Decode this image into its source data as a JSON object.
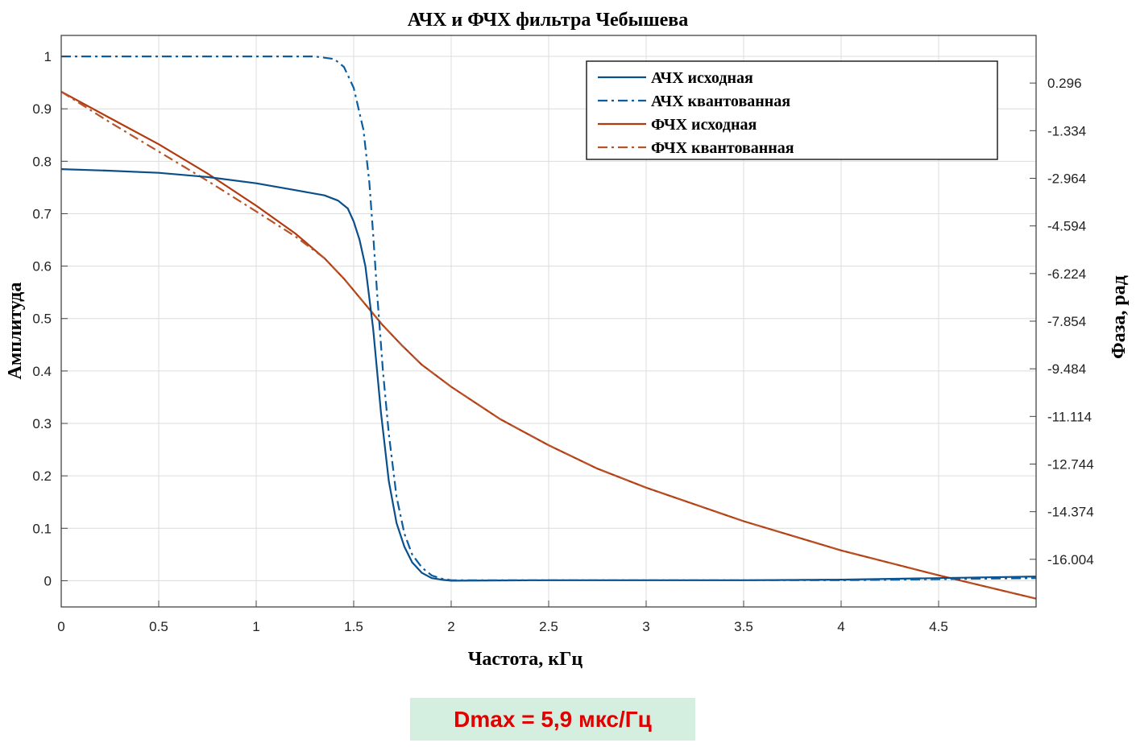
{
  "chart_data": {
    "type": "line",
    "title": "АЧХ и ФЧХ фильтра Чебышева",
    "xlabel": "Частота, кГц",
    "ylabel_left": "Амплитуда",
    "ylabel_right": "Фаза, рад",
    "xlim": [
      0,
      5
    ],
    "ylim_left": [
      -0.05,
      1.04
    ],
    "ylim_right": [
      -17.634,
      1.926
    ],
    "x_ticks": [
      0,
      0.5,
      1,
      1.5,
      2,
      2.5,
      3,
      3.5,
      4,
      4.5
    ],
    "x_tick_labels": [
      "0",
      "0.5",
      "1",
      "1.5",
      "2",
      "2.5",
      "3",
      "3.5",
      "4",
      "4.5"
    ],
    "y_left_ticks": [
      0,
      0.1,
      0.2,
      0.3,
      0.4,
      0.5,
      0.6,
      0.7,
      0.8,
      0.9,
      1
    ],
    "y_left_tick_labels": [
      "0",
      "0.1",
      "0.2",
      "0.3",
      "0.4",
      "0.5",
      "0.6",
      "0.7",
      "0.8",
      "0.9",
      "1"
    ],
    "y_right_ticks": [
      0.296,
      -1.334,
      -2.964,
      -4.594,
      -6.224,
      -7.854,
      -9.484,
      -11.114,
      -12.744,
      -14.374,
      -16.004
    ],
    "y_right_tick_labels": [
      "0.296",
      "-1.334",
      "-2.964",
      "-4.594",
      "-6.224",
      "-7.854",
      "-9.484",
      "-11.114",
      "-12.744",
      "-14.374",
      "-16.004"
    ],
    "grid": true,
    "legend_position": "top-right",
    "series": [
      {
        "name": "АЧХ исходная",
        "axis": "left",
        "color": "#0b4f8a",
        "dash": "solid",
        "x": [
          0,
          0.25,
          0.5,
          0.75,
          1.0,
          1.2,
          1.35,
          1.42,
          1.47,
          1.5,
          1.53,
          1.56,
          1.6,
          1.64,
          1.68,
          1.72,
          1.76,
          1.8,
          1.85,
          1.9,
          1.95,
          2.0,
          2.5,
          3.0,
          3.5,
          4.0,
          4.5,
          5.0
        ],
        "y": [
          0.785,
          0.782,
          0.778,
          0.77,
          0.758,
          0.745,
          0.735,
          0.725,
          0.71,
          0.685,
          0.65,
          0.6,
          0.48,
          0.32,
          0.19,
          0.11,
          0.065,
          0.035,
          0.015,
          0.005,
          0.002,
          0.0,
          0.001,
          0.001,
          0.001,
          0.002,
          0.005,
          0.008
        ]
      },
      {
        "name": "АЧХ квантованная",
        "axis": "left",
        "color": "#0b5da0",
        "dash": "dashdot",
        "x": [
          0,
          0.5,
          1.0,
          1.3,
          1.4,
          1.45,
          1.5,
          1.55,
          1.58,
          1.6,
          1.62,
          1.65,
          1.68,
          1.72,
          1.76,
          1.8,
          1.85,
          1.9,
          1.95,
          2.0,
          2.5,
          3.0,
          3.5,
          4.0,
          4.5,
          5.0
        ],
        "y": [
          1.0,
          1.0,
          1.0,
          1.0,
          0.995,
          0.98,
          0.94,
          0.86,
          0.76,
          0.66,
          0.55,
          0.4,
          0.28,
          0.16,
          0.09,
          0.05,
          0.025,
          0.01,
          0.004,
          0.001,
          0.001,
          0.001,
          0.001,
          0.001,
          0.003,
          0.005
        ]
      },
      {
        "name": "ФЧХ исходная",
        "axis": "right",
        "color": "#b23a0e",
        "dash": "solid",
        "x": [
          0,
          0.25,
          0.5,
          0.75,
          1.0,
          1.2,
          1.35,
          1.45,
          1.55,
          1.65,
          1.75,
          1.85,
          2.0,
          2.25,
          2.5,
          2.75,
          3.0,
          3.5,
          4.0,
          4.5,
          5.0
        ],
        "y": [
          0.0,
          -0.9,
          -1.8,
          -2.8,
          -3.9,
          -4.85,
          -5.7,
          -6.4,
          -7.2,
          -8.0,
          -8.7,
          -9.35,
          -10.1,
          -11.2,
          -12.1,
          -12.9,
          -13.55,
          -14.7,
          -15.7,
          -16.55,
          -17.35
        ]
      },
      {
        "name": "ФЧХ квантованная",
        "axis": "right",
        "color": "#b8542a",
        "dash": "dashdot",
        "x": [
          0,
          0.25,
          0.5,
          0.75,
          1.0,
          1.2,
          1.35,
          1.45,
          1.55,
          1.65,
          1.75,
          1.85,
          2.0,
          2.25,
          2.5,
          2.75,
          3.0,
          3.5,
          4.0,
          4.5,
          5.0
        ],
        "y": [
          0.0,
          -1.05,
          -2.05,
          -3.05,
          -4.1,
          -4.95,
          -5.7,
          -6.4,
          -7.2,
          -8.0,
          -8.7,
          -9.35,
          -10.1,
          -11.2,
          -12.1,
          -12.9,
          -13.55,
          -14.7,
          -15.7,
          -16.55,
          -17.35
        ]
      }
    ]
  },
  "annotation": {
    "text": "Dmax = 5,9 мкс/Гц",
    "background": "#d4efdf",
    "color": "#e00000"
  }
}
